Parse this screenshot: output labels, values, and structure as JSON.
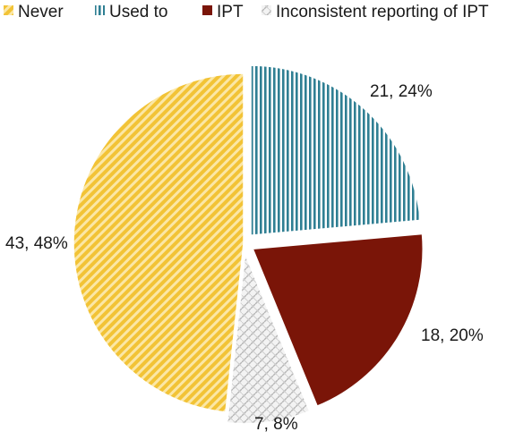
{
  "chart_data": {
    "type": "pie",
    "categories": [
      "Never",
      "Used to",
      "IPT",
      "Inconsistent reporting of IPT"
    ],
    "values": [
      43,
      21,
      18,
      7
    ],
    "percents": [
      48,
      24,
      20,
      8
    ],
    "data_labels": [
      "43, 48%",
      "21, 24%",
      "18, 20%",
      "7, 8%"
    ],
    "legend_position": "top",
    "exploded_slices": [
      "Used to",
      "IPT",
      "Inconsistent reporting of IPT"
    ],
    "start_angle": "12 o'clock, clockwise from Used to",
    "colors": {
      "Never": "#f2c336",
      "Used to": "#2f7f93",
      "IPT": "#7a1508",
      "Inconsistent reporting of IPT": "#b8b8b8"
    },
    "patterns": {
      "Never": "diagonal-stripes",
      "Used to": "vertical-stripes",
      "IPT": "solid",
      "Inconsistent reporting of IPT": "weave"
    }
  }
}
